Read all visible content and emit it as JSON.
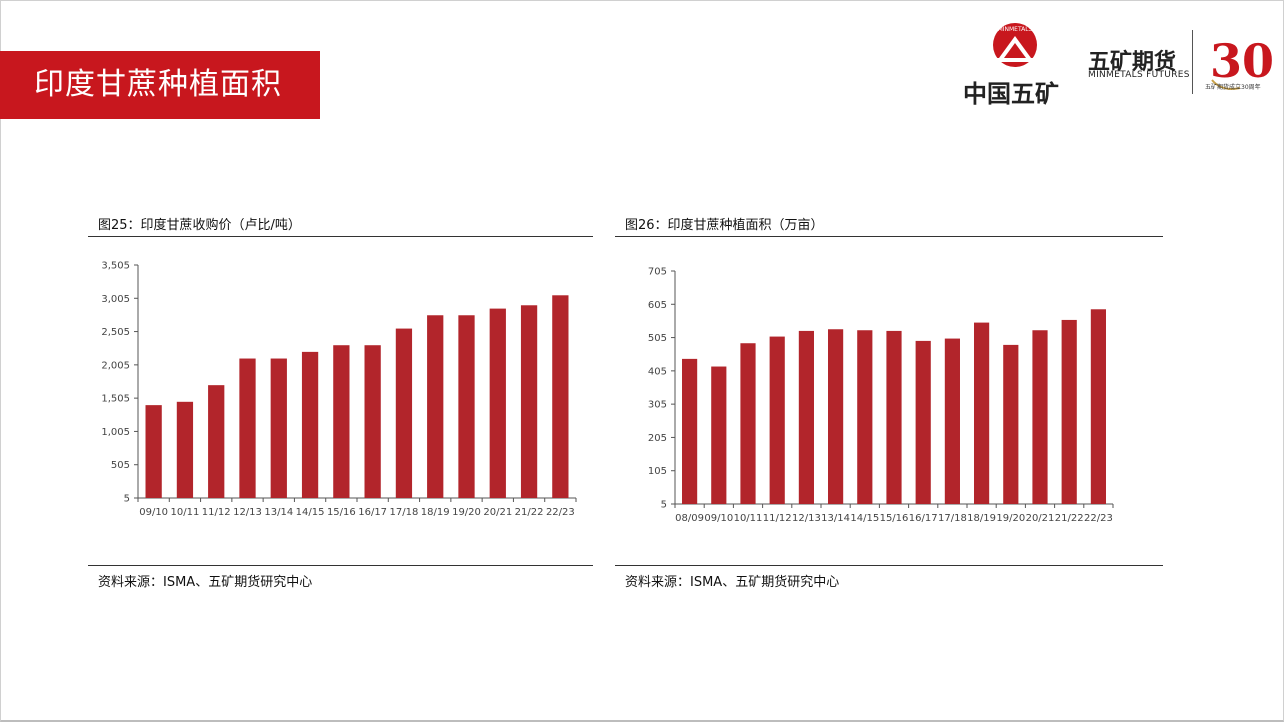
{
  "slide": {
    "title": "印度甘蔗种植面积",
    "logos": {
      "china_minmetals": "中国五矿",
      "minmetals_futures": "五矿期货",
      "minmetals_futures_en": "MINMETALS FUTURES",
      "seal_text": "MINMETALS",
      "anniversary_number": "30",
      "anniversary_caption": "五矿期货成立30周年"
    },
    "accent_color": "#c8171e",
    "bar_color": "#b2252b"
  },
  "chart_data": [
    {
      "type": "bar",
      "figure_label": "图25：印度甘蔗收购价（卢比/吨）",
      "categories": [
        "09/10",
        "10/11",
        "11/12",
        "12/13",
        "13/14",
        "14/15",
        "15/16",
        "16/17",
        "17/18",
        "18/19",
        "19/20",
        "20/21",
        "21/22",
        "22/23"
      ],
      "values": [
        1400,
        1450,
        1700,
        2100,
        2100,
        2200,
        2300,
        2300,
        2550,
        2750,
        2750,
        2850,
        2900,
        3050
      ],
      "ylim": [
        5,
        3505
      ],
      "yticks": [
        "5",
        "505",
        "1,005",
        "1,505",
        "2,005",
        "2,505",
        "3,005",
        "3,505"
      ],
      "grid": false,
      "source": "资料来源：ISMA、五矿期货研究中心"
    },
    {
      "type": "bar",
      "figure_label": "图26：印度甘蔗种植面积（万亩）",
      "categories": [
        "08/09",
        "09/10",
        "10/11",
        "11/12",
        "12/13",
        "13/14",
        "14/15",
        "15/16",
        "16/17",
        "17/18",
        "18/19",
        "19/20",
        "20/21",
        "21/22",
        "22/23"
      ],
      "values": [
        441,
        418,
        488,
        508,
        525,
        530,
        527,
        525,
        495,
        502,
        550,
        483,
        527,
        558,
        590
      ],
      "ylim": [
        5,
        705
      ],
      "yticks": [
        "5",
        "105",
        "205",
        "305",
        "405",
        "505",
        "605",
        "705"
      ],
      "grid": false,
      "source": "资料来源：ISMA、五矿期货研究中心"
    }
  ]
}
